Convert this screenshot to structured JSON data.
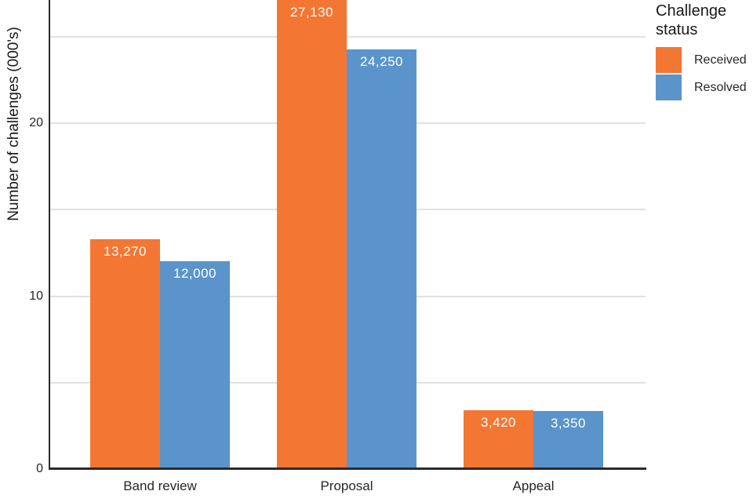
{
  "chart_data": {
    "type": "bar",
    "title": "",
    "xlabel": "",
    "ylabel": "Number of challenges (000's)",
    "categories": [
      "Band review",
      "Proposal",
      "Appeal"
    ],
    "series": [
      {
        "name": "Received",
        "color": "#f47633",
        "values": [
          13270,
          27130,
          3420
        ],
        "value_labels": [
          "13,270",
          "27,130",
          "3,420"
        ]
      },
      {
        "name": "Resolved",
        "color": "#5a94cb",
        "values": [
          12000,
          24250,
          3350
        ],
        "value_labels": [
          "12,000",
          "24,250",
          "3,350"
        ]
      }
    ],
    "ylim": [
      0,
      27.2
    ],
    "y_ticks": [
      0,
      10,
      20
    ],
    "gridline_values": [
      5,
      10,
      15,
      20,
      25
    ],
    "grid": "horizontal",
    "legend_title": "Challenge status",
    "legend_position": "top-right-outside"
  },
  "colors": {
    "received": "#f47633",
    "resolved": "#5a94cb",
    "axis": "#2b2b2b",
    "gridline": "#e1e1e1",
    "text": "#262626",
    "bar_label_text": "#ffffff",
    "background": "#ffffff"
  }
}
